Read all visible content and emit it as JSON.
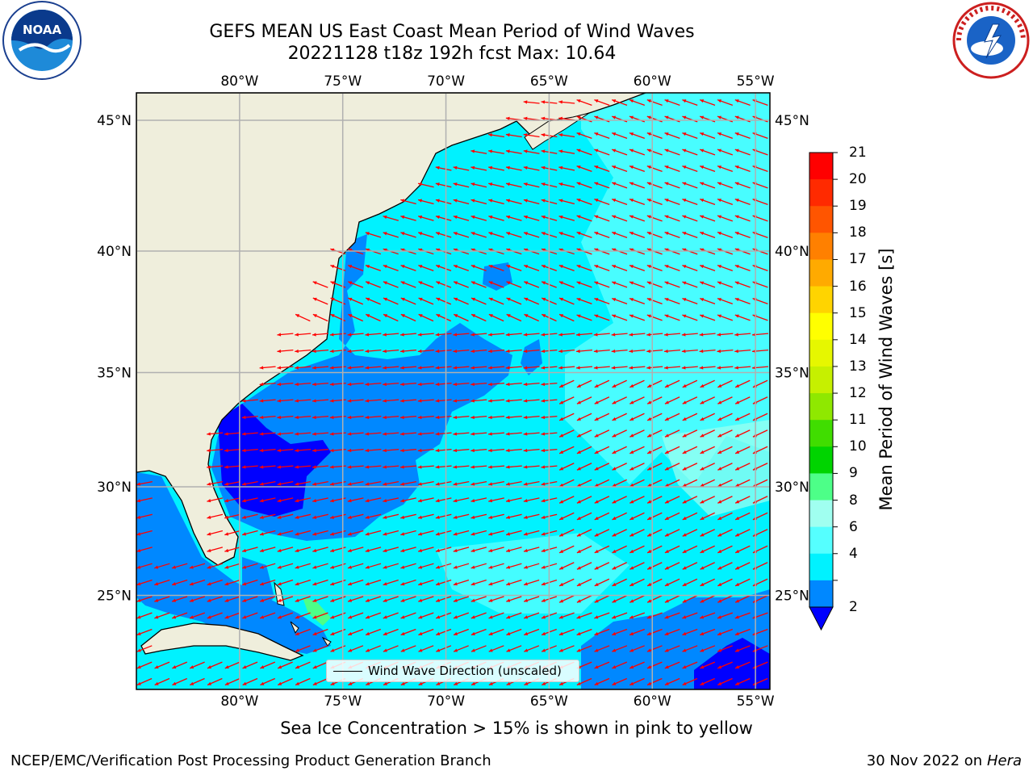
{
  "header": {
    "title_line1": "GEFS MEAN US East Coast Mean Period of Wind Waves",
    "title_line2": "20221128 t18z 192h fcst   Max: 10.64"
  },
  "logos": {
    "left": "NOAA",
    "right": "NATIONAL WEATHER SERVICE"
  },
  "map": {
    "lon_labels": [
      "80°W",
      "75°W",
      "70°W",
      "65°W",
      "60°W",
      "55°W"
    ],
    "lon_values": [
      -80,
      -75,
      -70,
      -65,
      -60,
      -55
    ],
    "lat_labels": [
      "45°N",
      "40°N",
      "35°N",
      "30°N",
      "25°N"
    ],
    "lat_values": [
      45,
      40,
      35,
      30,
      25
    ],
    "lon_range": [
      -85,
      -54.3
    ],
    "lat_range": [
      20.5,
      46
    ],
    "grid": true,
    "colors": {
      "land": "#efeedc",
      "gridline": "#b0b0b0",
      "arrow": "#ff0000",
      "coast": "#000000"
    },
    "wave_direction_note": "Wind Wave Direction (unscaled)"
  },
  "colorbar": {
    "label": "Mean Period of Wind Waves [s]",
    "ticks": [
      "21",
      "20",
      "19",
      "18",
      "17",
      "16",
      "15",
      "14",
      "13",
      "12",
      "11",
      "10",
      "9",
      "8",
      "6",
      "4",
      "2"
    ],
    "colors": [
      "#ff0000",
      "#ff2a00",
      "#ff5500",
      "#ff8000",
      "#ffaa00",
      "#ffd400",
      "#ffff00",
      "#e6f700",
      "#c6f000",
      "#8fe800",
      "#40dd00",
      "#00d400",
      "#4dff88",
      "#a0fff0",
      "#55ffff",
      "#00f2ff",
      "#0088ff"
    ],
    "under_color": "#0000ff"
  },
  "footer": {
    "ice_note": "Sea Ice Concentration > 15% is shown in pink to yellow",
    "left": "NCEP/EMC/Verification Post Processing Product Generation Branch",
    "right_date": "30 Nov 2022 on",
    "right_host": "Hera"
  }
}
